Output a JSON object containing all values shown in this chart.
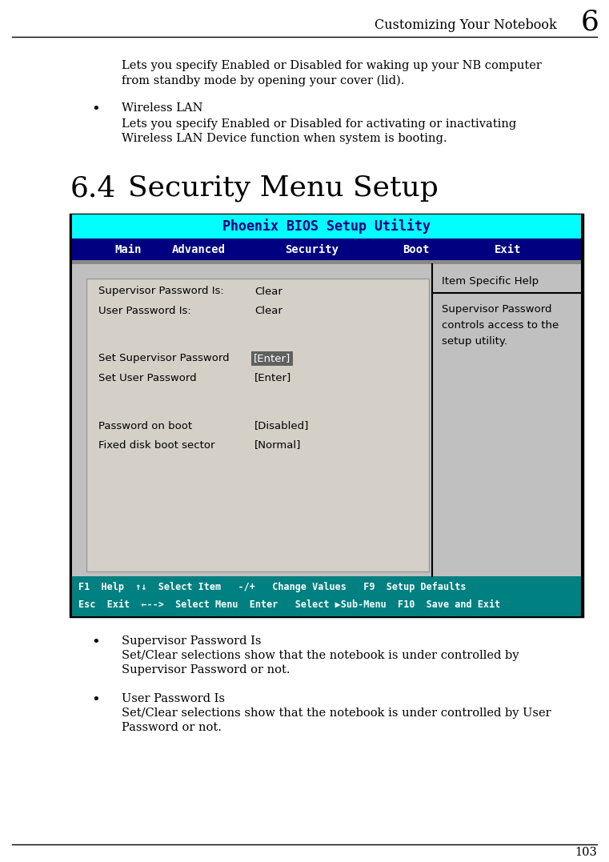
{
  "page_title": "Customizing Your Notebook",
  "chapter_num": "6",
  "page_num": "103",
  "intro_text_1": "Lets you specify Enabled or Disabled for waking up your NB computer\nfrom standby mode by opening your cover (lid).",
  "bullet1_label": "Wireless LAN",
  "bullet1_text": "Lets you specify Enabled or Disabled for activating or inactivating\nWireless LAN Device function when system is booting.",
  "section_heading_num": "6.4",
  "section_heading_title": "Security Menu Setup",
  "bios_title": "Phoenix BIOS Setup Utility",
  "bios_title_bg": "#00FFFF",
  "bios_title_color": "#000080",
  "menu_bg": "#000080",
  "menu_text_color": "#FFFFFF",
  "menu_items": [
    "Main",
    "Advanced",
    "Security",
    "Boot",
    "Exit"
  ],
  "menu_selected": "Security",
  "content_bg": "#C0C0C0",
  "content_left_bg": "#D0D0D0",
  "content_items": [
    {
      "left": "Supervisor Password Is:",
      "right": "Clear",
      "highlight": false
    },
    {
      "left": "User Password Is:",
      "right": "Clear",
      "highlight": false
    },
    {
      "left": "",
      "right": "",
      "highlight": false
    },
    {
      "left": "Set Supervisor Password",
      "right": "[Enter]",
      "highlight": true
    },
    {
      "left": "Set User Password",
      "right": "[Enter]",
      "highlight": false
    },
    {
      "left": "",
      "right": "",
      "highlight": false
    },
    {
      "left": "Password on boot",
      "right": "[Disabled]",
      "highlight": false
    },
    {
      "left": "Fixed disk boot sector",
      "right": "[Normal]",
      "highlight": false
    }
  ],
  "highlight_bg": "#606060",
  "highlight_fg": "#FFFFFF",
  "help_header": "Item Specific Help",
  "help_text": "Supervisor Password\ncontrols access to the\nsetup utility.",
  "footer_bg": "#008080",
  "footer_fg": "#FFFFFF",
  "footer_row1_parts": [
    {
      "text": "F1",
      "bold": true
    },
    {
      "text": "  Help  ",
      "bold": false
    },
    {
      "text": "↑↓",
      "bold": true
    },
    {
      "text": "  Select Item   ",
      "bold": false
    },
    {
      "text": "-/+",
      "bold": true
    },
    {
      "text": "   Change Values   ",
      "bold": false
    },
    {
      "text": "F9",
      "bold": true
    },
    {
      "text": "  ",
      "bold": false
    },
    {
      "text": "Setup Defaults",
      "bold": true
    }
  ],
  "footer_row2_parts": [
    {
      "text": "Esc",
      "bold": true
    },
    {
      "text": "  Exit  ",
      "bold": false
    },
    {
      "text": "←-->",
      "bold": true
    },
    {
      "text": "  Select Menu  ",
      "bold": false
    },
    {
      "text": "Enter",
      "bold": true
    },
    {
      "text": "   Select ",
      "bold": false
    },
    {
      "text": "▶",
      "bold": false
    },
    {
      "text": "Sub-Menu  ",
      "bold": true
    },
    {
      "text": "F10",
      "bold": true
    },
    {
      "text": "  ",
      "bold": false
    },
    {
      "text": "Save and Exit",
      "bold": true
    }
  ],
  "bullet2_label": "Supervisor Password Is",
  "bullet2_text": "Set/Clear selections show that the notebook is under controlled by\nSupervisor Password or not.",
  "bullet3_label": "User Password Is",
  "bullet3_text": "Set/Clear selections show that the notebook is under controlled by User\nPassword or not.",
  "bg_color": "#FFFFFF",
  "text_color": "#000000"
}
